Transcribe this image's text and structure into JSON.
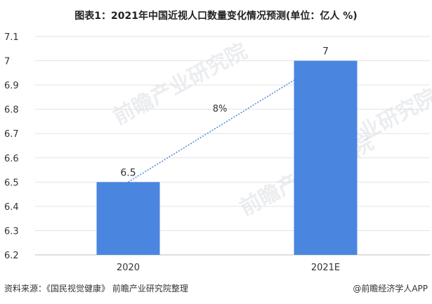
{
  "title": "图表1：2021年中国近视人口数量变化情况预测(单位：亿人 %)",
  "source": "资料来源：《国民视觉健康》 前瞻产业研究院整理",
  "credit": "@前瞻经济学人APP",
  "watermark": "前瞻产业研究院",
  "colors": {
    "bar": "#4A86E0",
    "trend": "#4A86E0",
    "grid": "#E3E3E3"
  },
  "chart_data": {
    "type": "bar",
    "categories": [
      "2020",
      "2021E"
    ],
    "values": [
      6.5,
      7
    ],
    "data_labels": [
      "6.5",
      "7"
    ],
    "ylim": [
      6.2,
      7.1
    ],
    "yticks": [
      "6.2",
      "6.3",
      "6.4",
      "6.5",
      "6.6",
      "6.7",
      "6.8",
      "6.9",
      "7",
      "7.1"
    ],
    "trend_annotation": "8%",
    "grid": true
  }
}
